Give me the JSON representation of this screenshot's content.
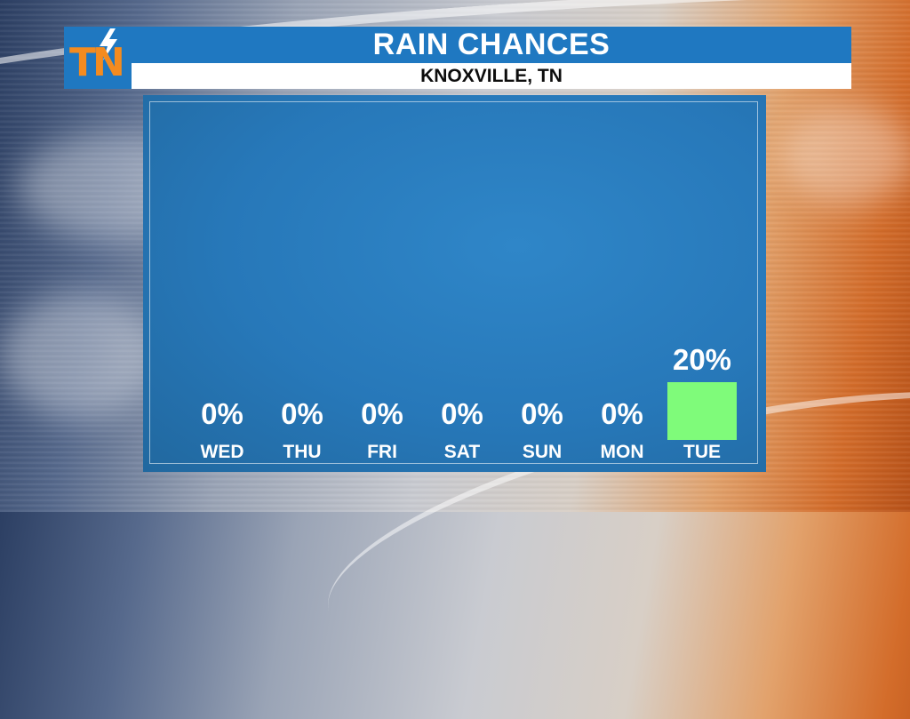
{
  "header": {
    "logo_text": "TN",
    "title": "RAIN CHANCES",
    "subtitle": "KNOXVILLE, TN"
  },
  "colors": {
    "brand_blue": "#1f78c1",
    "logo_orange": "#f48b1f",
    "bar_green": "#7ffb7a",
    "panel_blue": "#2778b9"
  },
  "chart_data": {
    "type": "bar",
    "title": "RAIN CHANCES",
    "subtitle": "KNOXVILLE, TN",
    "categories": [
      "WED",
      "THU",
      "FRI",
      "SAT",
      "SUN",
      "MON",
      "TUE"
    ],
    "values": [
      0,
      0,
      0,
      0,
      0,
      0,
      20
    ],
    "value_labels": [
      "0%",
      "0%",
      "0%",
      "0%",
      "0%",
      "0%",
      "20%"
    ],
    "unit": "%",
    "ylim": [
      0,
      100
    ],
    "grid": false,
    "xlabel": "",
    "ylabel": ""
  }
}
